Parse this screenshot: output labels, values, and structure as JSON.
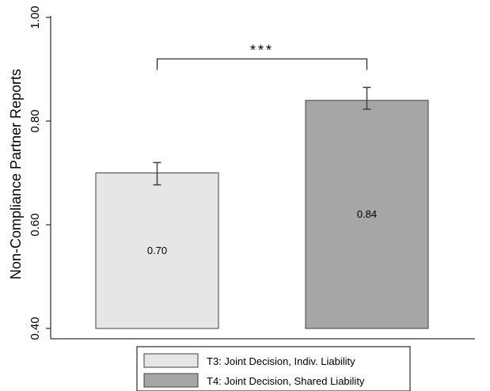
{
  "chart_data": {
    "type": "bar",
    "categories": [
      "T3: Joint Decision, Indiv. Liability",
      "T4: Joint Decision, Shared Liability"
    ],
    "values": [
      0.7,
      0.84
    ],
    "error_bars": [
      {
        "low": 0.677,
        "high": 0.72
      },
      {
        "low": 0.823,
        "high": 0.865
      }
    ],
    "bar_labels": [
      "0.70",
      "0.84"
    ],
    "bar_colors": [
      "#e6e6e6",
      "#a6a6a6"
    ],
    "ylabel": "Non-Compliance Partner Reports",
    "ylim": [
      0.4,
      1.0
    ],
    "yticks": [
      0.4,
      0.6,
      0.8,
      1.0
    ],
    "ytick_labels": [
      "0.40",
      "0.60",
      "0.80",
      "1.00"
    ],
    "grid": false,
    "legend": {
      "placement": "bottom",
      "entries": [
        "T3: Joint Decision, Indiv. Liability",
        "T4: Joint Decision, Shared Liability"
      ]
    },
    "significance": {
      "between": [
        0,
        1
      ],
      "label": "***",
      "level": 0.92
    }
  }
}
